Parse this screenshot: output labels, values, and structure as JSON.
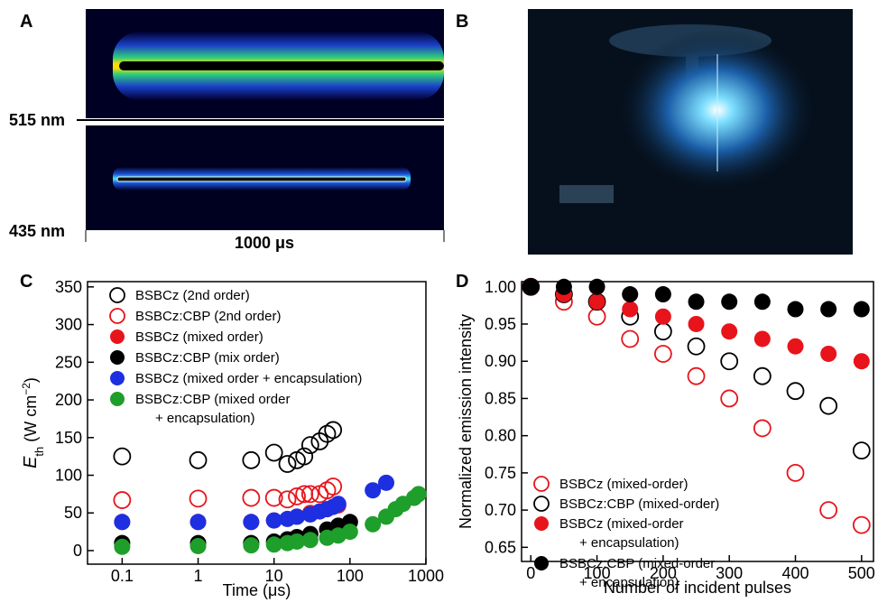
{
  "panels": {
    "A": {
      "label": "A",
      "top_wavelength": "515 nm",
      "bottom_wavelength": "435 nm",
      "time_span": "1000 μs"
    },
    "B": {
      "label": "B"
    }
  },
  "chart_data": [
    {
      "type": "scatter",
      "panel": "C",
      "xlabel": "Time (μs)",
      "ylabel": {
        "main": "E",
        "sub": "th",
        "unit": " (W cm",
        "sup": "−2",
        "close": ")"
      },
      "log_x": true,
      "xlim": [
        0.035,
        1000
      ],
      "xticks": [
        0.1,
        1,
        10,
        100,
        1000
      ],
      "ylim": [
        -18,
        357
      ],
      "yticks": [
        0,
        50,
        100,
        150,
        200,
        250,
        300,
        350
      ],
      "series": [
        {
          "name": "BSBCz (2nd order)",
          "color": "#000000",
          "marker": "open",
          "x": [
            0.1,
            1,
            5,
            10,
            15,
            20,
            25,
            30,
            40,
            50,
            60
          ],
          "values": [
            125,
            120,
            120,
            130,
            115,
            120,
            125,
            140,
            145,
            155,
            160
          ]
        },
        {
          "name": "BSBCz:CBP (2nd order)",
          "color": "#e8141b",
          "marker": "open",
          "x": [
            0.1,
            1,
            5,
            10,
            15,
            20,
            25,
            30,
            40,
            50,
            60
          ],
          "values": [
            67,
            69,
            70,
            70,
            68,
            72,
            75,
            75,
            75,
            80,
            85
          ]
        },
        {
          "name": "BSBCz  (mixed order)",
          "color": "#e8141b",
          "marker": "filled",
          "x": [
            0.1,
            1,
            5,
            10,
            20,
            30,
            50,
            70
          ],
          "values": [
            38,
            38,
            38,
            40,
            45,
            50,
            55,
            60
          ]
        },
        {
          "name": "BSBCz:CBP (mix order)",
          "color": "#000000",
          "marker": "filled",
          "x": [
            0.1,
            1,
            5,
            10,
            15,
            20,
            30,
            50,
            70,
            100
          ],
          "values": [
            10,
            10,
            10,
            12,
            15,
            18,
            22,
            28,
            33,
            38
          ]
        },
        {
          "name": "BSBCz  (mixed order + encapsulation)",
          "color": "#1d2fe0",
          "marker": "filled",
          "x": [
            0.1,
            1,
            5,
            10,
            15,
            20,
            30,
            40,
            50,
            60,
            70,
            200,
            300
          ],
          "values": [
            38,
            38,
            38,
            40,
            42,
            45,
            48,
            52,
            55,
            58,
            62,
            80,
            90
          ]
        },
        {
          "name": "BSBCz:CBP (mixed order\n+ encapsulation)",
          "color": "#1e9e2a",
          "marker": "filled",
          "x": [
            0.1,
            1,
            5,
            10,
            15,
            20,
            30,
            50,
            70,
            100,
            200,
            300,
            400,
            500,
            700,
            800
          ],
          "values": [
            5,
            6,
            7,
            8,
            10,
            12,
            14,
            17,
            20,
            25,
            35,
            45,
            55,
            62,
            70,
            75
          ]
        }
      ]
    },
    {
      "type": "scatter",
      "panel": "D",
      "xlabel": "Number of incident pulses",
      "ylabel": "Normalized emission intensity",
      "log_x": false,
      "xlim": [
        -14,
        518
      ],
      "xticks": [
        0,
        100,
        200,
        300,
        400,
        500
      ],
      "ylim": [
        0.631,
        1.007
      ],
      "yticks": [
        {
          "value": 0.65,
          "label": "0.65"
        },
        {
          "value": 0.7,
          "label": "0.70"
        },
        {
          "value": 0.75,
          "label": "0.75"
        },
        {
          "value": 0.8,
          "label": "0.80"
        },
        {
          "value": 0.85,
          "label": "0.85"
        },
        {
          "value": 0.9,
          "label": "0.90"
        },
        {
          "value": 0.95,
          "label": "0.95"
        },
        {
          "value": 1,
          "label": "1.00"
        }
      ],
      "series": [
        {
          "name": "BSBCz (mixed-order)",
          "color": "#e8141b",
          "marker": "open",
          "x": [
            0,
            50,
            100,
            150,
            200,
            250,
            300,
            350,
            400,
            450,
            500
          ],
          "values": [
            1.0,
            0.98,
            0.96,
            0.93,
            0.91,
            0.88,
            0.85,
            0.81,
            0.75,
            0.7,
            0.68
          ]
        },
        {
          "name": "BSBCz:CBP  (mixed-order)",
          "color": "#000000",
          "marker": "open",
          "x": [
            0,
            50,
            100,
            150,
            200,
            250,
            300,
            350,
            400,
            450,
            500
          ],
          "values": [
            1.0,
            0.99,
            0.98,
            0.96,
            0.94,
            0.92,
            0.9,
            0.88,
            0.86,
            0.84,
            0.78
          ]
        },
        {
          "name": "BSBCz  (mixed-order\n+ encapsulation)",
          "color": "#e8141b",
          "marker": "filled",
          "x": [
            0,
            50,
            100,
            150,
            200,
            250,
            300,
            350,
            400,
            450,
            500
          ],
          "values": [
            1.0,
            0.99,
            0.98,
            0.97,
            0.96,
            0.95,
            0.94,
            0.93,
            0.92,
            0.91,
            0.9
          ]
        },
        {
          "name": "BSBCz:CBP (mixed-order\n+ encapsulation)",
          "color": "#000000",
          "marker": "filled",
          "x": [
            0,
            50,
            100,
            150,
            200,
            250,
            300,
            350,
            400,
            450,
            500
          ],
          "values": [
            1.0,
            1.0,
            1.0,
            0.99,
            0.99,
            0.98,
            0.98,
            0.98,
            0.97,
            0.97,
            0.97
          ]
        }
      ]
    }
  ]
}
